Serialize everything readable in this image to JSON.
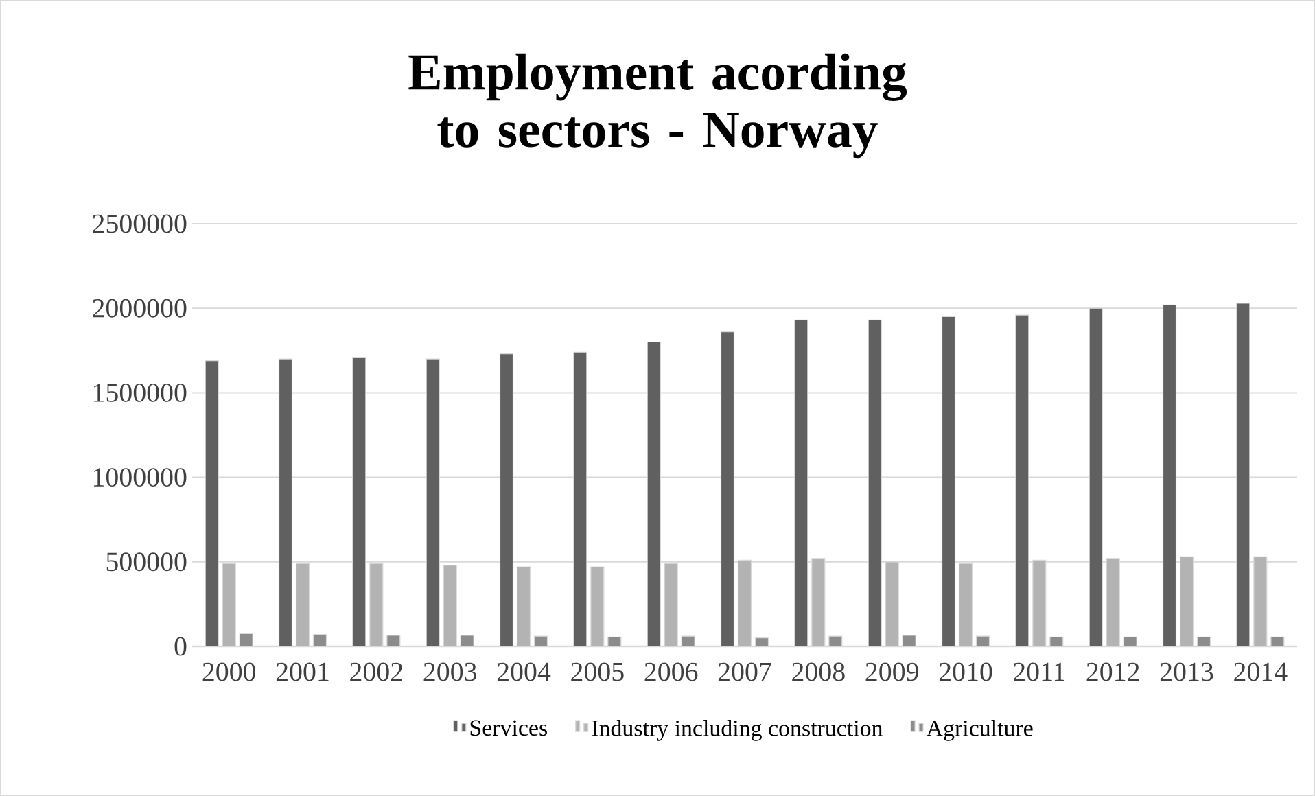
{
  "chart_data": {
    "type": "bar",
    "title": "Employment acording to sectors - Norway",
    "categories": [
      "2000",
      "2001",
      "2002",
      "2003",
      "2004",
      "2005",
      "2006",
      "2007",
      "2008",
      "2009",
      "2010",
      "2011",
      "2012",
      "2013",
      "2014"
    ],
    "series": [
      {
        "name": "Services",
        "color": "#606060",
        "values": [
          1690000,
          1700000,
          1710000,
          1700000,
          1730000,
          1740000,
          1800000,
          1860000,
          1930000,
          1930000,
          1950000,
          1960000,
          2000000,
          2020000,
          2030000
        ]
      },
      {
        "name": "Industry including construction",
        "color": "#b3b3b3",
        "values": [
          490000,
          490000,
          490000,
          480000,
          470000,
          470000,
          490000,
          510000,
          520000,
          500000,
          490000,
          510000,
          520000,
          530000,
          530000
        ]
      },
      {
        "name": "Agriculture",
        "color": "#8c8c8c",
        "values": [
          75000,
          70000,
          65000,
          65000,
          60000,
          55000,
          60000,
          50000,
          60000,
          65000,
          60000,
          55000,
          55000,
          55000,
          55000
        ]
      }
    ],
    "ylim": [
      0,
      2500000
    ],
    "yticks": [
      0,
      500000,
      1000000,
      1500000,
      2000000,
      2500000
    ],
    "grid": "y",
    "legend": "bottom"
  }
}
